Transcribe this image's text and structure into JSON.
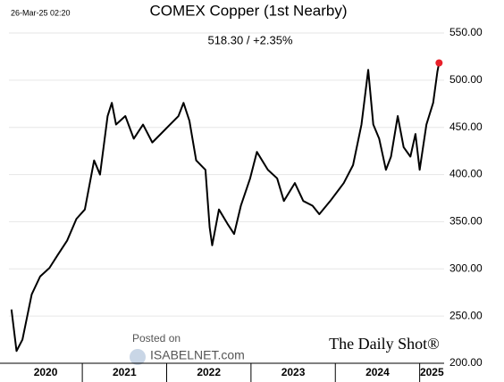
{
  "chart_data": {
    "type": "line",
    "timestamp": "26-Mar-25 02:20",
    "title": "COMEX Copper (1st Nearby)",
    "subtitle": "518.30  /  +2.35%",
    "watermark_top": "Posted on",
    "watermark_site": "ISABELNET.com",
    "source": "The Daily Shot®",
    "year_labels": [
      "2020",
      "2021",
      "2022",
      "2023",
      "2024",
      "2025"
    ],
    "xlim": [
      2020.13,
      2025.29
    ],
    "xticks": [
      2021,
      2022,
      2023,
      2024,
      2025
    ],
    "ylim": [
      200,
      550
    ],
    "yticks": [
      {
        "value": 200,
        "label": "200.00"
      },
      {
        "value": 250,
        "label": "250.00"
      },
      {
        "value": 300,
        "label": "300.00"
      },
      {
        "value": 350,
        "label": "350.00"
      },
      {
        "value": 400,
        "label": "400.00"
      },
      {
        "value": 450,
        "label": "450.00"
      },
      {
        "value": 500,
        "label": "500.00"
      },
      {
        "value": 550,
        "label": "550.00"
      }
    ],
    "grid": true,
    "x": [
      2020.16,
      2020.22,
      2020.29,
      2020.4,
      2020.5,
      2020.61,
      2020.71,
      2020.82,
      2020.93,
      2021.03,
      2021.14,
      2021.21,
      2021.3,
      2021.35,
      2021.4,
      2021.51,
      2021.61,
      2021.72,
      2021.83,
      2021.93,
      2022.04,
      2022.14,
      2022.2,
      2022.27,
      2022.35,
      2022.46,
      2022.51,
      2022.54,
      2022.62,
      2022.72,
      2022.8,
      2022.88,
      2022.99,
      2023.07,
      2023.2,
      2023.31,
      2023.39,
      2023.52,
      2023.62,
      2023.73,
      2023.81,
      2023.94,
      2024.1,
      2024.21,
      2024.31,
      2024.39,
      2024.45,
      2024.52,
      2024.6,
      2024.66,
      2024.74,
      2024.81,
      2024.89,
      2024.95,
      2025.0,
      2025.08,
      2025.16,
      2025.21,
      2025.23
    ],
    "series": [
      {
        "name": "COMEX Copper",
        "color": "#000000",
        "marker_color": "#e8202a",
        "values": [
          257,
          213,
          225,
          273,
          292,
          301,
          315,
          330,
          353,
          363,
          415,
          400,
          462,
          476,
          453,
          462,
          438,
          453,
          434,
          443,
          453,
          462,
          476,
          457,
          415,
          405,
          344,
          325,
          363,
          348,
          337,
          367,
          396,
          424,
          405,
          396,
          372,
          391,
          372,
          367,
          358,
          372,
          391,
          410,
          453,
          511,
          453,
          438,
          405,
          419,
          462,
          429,
          419,
          443,
          405,
          453,
          476,
          509,
          518.3
        ]
      }
    ]
  }
}
